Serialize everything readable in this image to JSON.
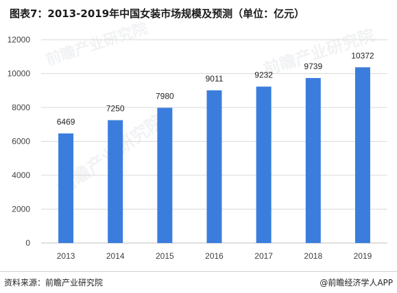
{
  "title": "图表7：2013-2019年中国女装市场规模及预测（单位：亿元）",
  "footer": {
    "source": "资料来源：前瞻产业研究院",
    "credit": "@前瞻经济学人APP"
  },
  "watermark": {
    "text": "前瞻产业研究院"
  },
  "colors": {
    "bar": "#3b7ddd",
    "grid": "#d9d9d9"
  },
  "chart_data": {
    "type": "bar",
    "categories": [
      "2013",
      "2014",
      "2015",
      "2016",
      "2017",
      "2018",
      "2019"
    ],
    "values": [
      6469,
      7250,
      7980,
      9011,
      9232,
      9739,
      10372
    ],
    "ylim": [
      0,
      12000
    ],
    "yticks": [
      0,
      2000,
      4000,
      6000,
      8000,
      10000,
      12000
    ],
    "grid": true,
    "legend": "none"
  }
}
